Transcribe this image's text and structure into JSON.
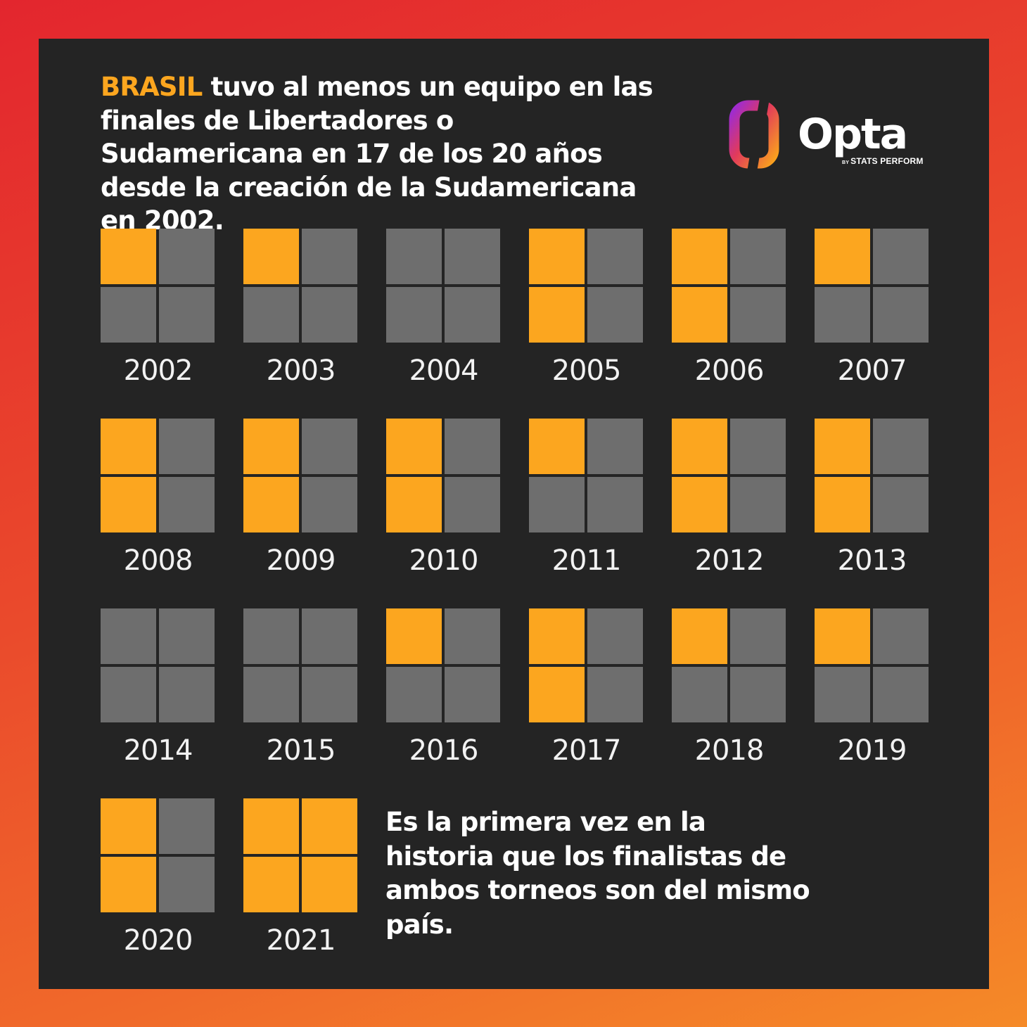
{
  "headline": {
    "accent": "BRASIL",
    "rest": " tuvo al menos un equipo en las finales de Libertadores o Sudamericana en 17 de los 20 años desde la creación de la Sudamericana en 2002."
  },
  "logo": {
    "wordmark": "Opta",
    "by": "BY",
    "tagline": "STATS PERFORM"
  },
  "note": "Es la primera vez en la historia que los finalistas de ambos torneos son del mismo país.",
  "colors": {
    "brazil_finalist": "#fca61f",
    "other": "#6e6e6e",
    "panel": "#242424"
  },
  "chart_data": {
    "type": "table",
    "title": "",
    "cells_per_year": [
      "top-left",
      "top-right",
      "bottom-left",
      "bottom-right"
    ],
    "years": [
      {
        "year": "2002",
        "cells": [
          1,
          0,
          0,
          0
        ]
      },
      {
        "year": "2003",
        "cells": [
          1,
          0,
          0,
          0
        ]
      },
      {
        "year": "2004",
        "cells": [
          0,
          0,
          0,
          0
        ]
      },
      {
        "year": "2005",
        "cells": [
          1,
          0,
          1,
          0
        ]
      },
      {
        "year": "2006",
        "cells": [
          1,
          0,
          1,
          0
        ]
      },
      {
        "year": "2007",
        "cells": [
          1,
          0,
          0,
          0
        ]
      },
      {
        "year": "2008",
        "cells": [
          1,
          0,
          1,
          0
        ]
      },
      {
        "year": "2009",
        "cells": [
          1,
          0,
          1,
          0
        ]
      },
      {
        "year": "2010",
        "cells": [
          1,
          0,
          1,
          0
        ]
      },
      {
        "year": "2011",
        "cells": [
          1,
          0,
          0,
          0
        ]
      },
      {
        "year": "2012",
        "cells": [
          1,
          0,
          1,
          0
        ]
      },
      {
        "year": "2013",
        "cells": [
          1,
          0,
          1,
          0
        ]
      },
      {
        "year": "2014",
        "cells": [
          0,
          0,
          0,
          0
        ]
      },
      {
        "year": "2015",
        "cells": [
          0,
          0,
          0,
          0
        ]
      },
      {
        "year": "2016",
        "cells": [
          1,
          0,
          0,
          0
        ]
      },
      {
        "year": "2017",
        "cells": [
          1,
          0,
          1,
          0
        ]
      },
      {
        "year": "2018",
        "cells": [
          1,
          0,
          0,
          0
        ]
      },
      {
        "year": "2019",
        "cells": [
          1,
          0,
          0,
          0
        ]
      },
      {
        "year": "2020",
        "cells": [
          1,
          0,
          1,
          0
        ]
      },
      {
        "year": "2021",
        "cells": [
          1,
          1,
          1,
          1
        ]
      }
    ]
  }
}
